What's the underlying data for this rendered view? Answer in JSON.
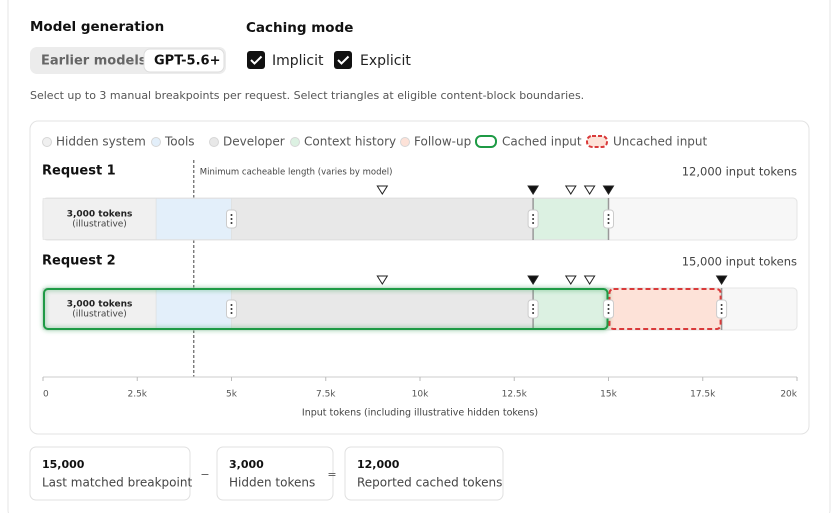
{
  "header": {
    "model_generation": "Model generation",
    "model_options": [
      "Earlier models",
      "GPT-5.6+"
    ],
    "caching_mode": "Caching mode",
    "checkboxes": [
      "Implicit",
      "Explicit"
    ],
    "description": "Select up to 3 manual breakpoints per request. Select triangles at eligible content-block boundaries."
  },
  "chart_data": {
    "type": "stacked-bar",
    "orientation": "horizontal",
    "categories": [
      "Request 1",
      "Request 2"
    ],
    "total_labels": [
      "12,000 input tokens",
      "15,000 input tokens"
    ],
    "series": [
      {
        "name": "Hidden system",
        "color": "#f0f0f0",
        "values": [
          3000,
          3000
        ],
        "value_labels": [
          "3,000 tokens",
          "3,000 tokens"
        ]
      },
      {
        "name": "Tools",
        "color": "#e3effa",
        "values": [
          2000,
          2000
        ]
      },
      {
        "name": "Developer",
        "color": "#e8e8e8",
        "values": [
          8000,
          8000
        ]
      },
      {
        "name": "Context history",
        "color": "#dcf1e2",
        "values": [
          2000,
          2000
        ]
      },
      {
        "name": "Follow-up",
        "color": "#fde2d8",
        "values": [
          null,
          3000
        ]
      }
    ],
    "segment_note": "(illustrative)",
    "outlines": [
      {
        "name": "Cached input",
        "color": "#1e9a45",
        "dashed": false,
        "values": [
          null,
          15000
        ]
      },
      {
        "name": "Uncached input",
        "color": "#d93a3a",
        "dashed": true,
        "values": [
          null,
          3000
        ]
      }
    ],
    "breakpoints": [
      [
        9000,
        13000,
        14000,
        14500,
        15000
      ],
      [
        9000,
        13000,
        14000,
        14500,
        18000
      ]
    ],
    "breakpoint_selected": [
      [
        false,
        true,
        false,
        false,
        true
      ],
      [
        false,
        true,
        false,
        false,
        true
      ]
    ],
    "threshold": {
      "value": 4000,
      "label": "Minimum cacheable length (varies by model)"
    },
    "xlim": [
      0,
      20000
    ],
    "xticks": [
      0,
      {
        "value": 2500,
        "label": "2.5k"
      },
      {
        "value": 5000,
        "label": "5k"
      },
      {
        "value": 7500,
        "label": "7.5k"
      },
      {
        "value": 10000,
        "label": "10k"
      },
      {
        "value": 12500,
        "label": "12.5k"
      },
      {
        "value": 15000,
        "label": "15k"
      },
      {
        "value": 17500,
        "label": "17.5k"
      },
      {
        "value": 20000,
        "label": "20k"
      }
    ],
    "xlabel": "Input tokens (including illustrative hidden tokens)"
  },
  "summary": {
    "items": [
      {
        "value": "15,000",
        "label": "Last matched breakpoint"
      },
      {
        "value": "3,000",
        "label": "Hidden tokens"
      },
      {
        "value": "12,000",
        "label": "Reported cached tokens"
      }
    ],
    "operators": [
      "−",
      "="
    ]
  }
}
